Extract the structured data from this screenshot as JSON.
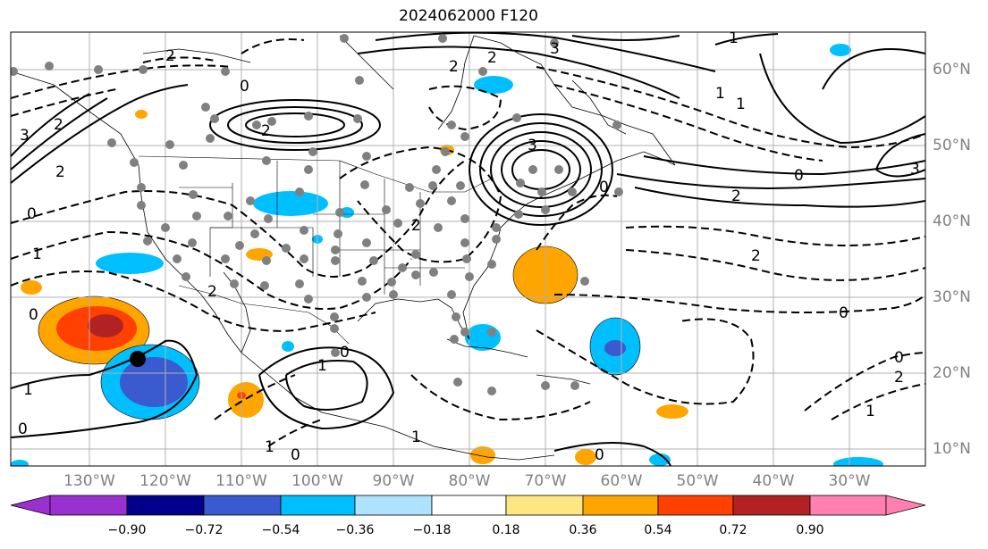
{
  "title": "2024062000 F120",
  "lat_labels": [
    "60°N",
    "50°N",
    "40°N",
    "30°N",
    "20°N",
    "10°N"
  ],
  "lon_labels": [
    "130°W",
    "120°W",
    "110°W",
    "100°W",
    "90°W",
    "80°W",
    "70°W",
    "60°W",
    "50°W",
    "40°W",
    "30°W"
  ],
  "colorbar": {
    "ticks": [
      "−0.90",
      "−0.72",
      "−0.54",
      "−0.36",
      "−0.18",
      "0.18",
      "0.36",
      "0.54",
      "0.72",
      "0.90"
    ],
    "colors": [
      "#9b30d0",
      "#00008b",
      "#3a5bd0",
      "#00bfff",
      "#aee2ff",
      "#ffffff",
      "#ffe680",
      "#ffa500",
      "#ff4000",
      "#b22222",
      "#ff80b0"
    ]
  },
  "contour_labels": [
    "2",
    "2",
    "3",
    "2",
    "3",
    "2",
    "2",
    "0",
    "0",
    "1",
    "2",
    "2",
    "0",
    "1",
    "0",
    "1",
    "0",
    "1",
    "0",
    "3",
    "2",
    "0",
    "2",
    "1",
    "0",
    "1",
    "0",
    "2",
    "1",
    "3",
    "2",
    "1",
    "0",
    "1",
    "0"
  ]
}
